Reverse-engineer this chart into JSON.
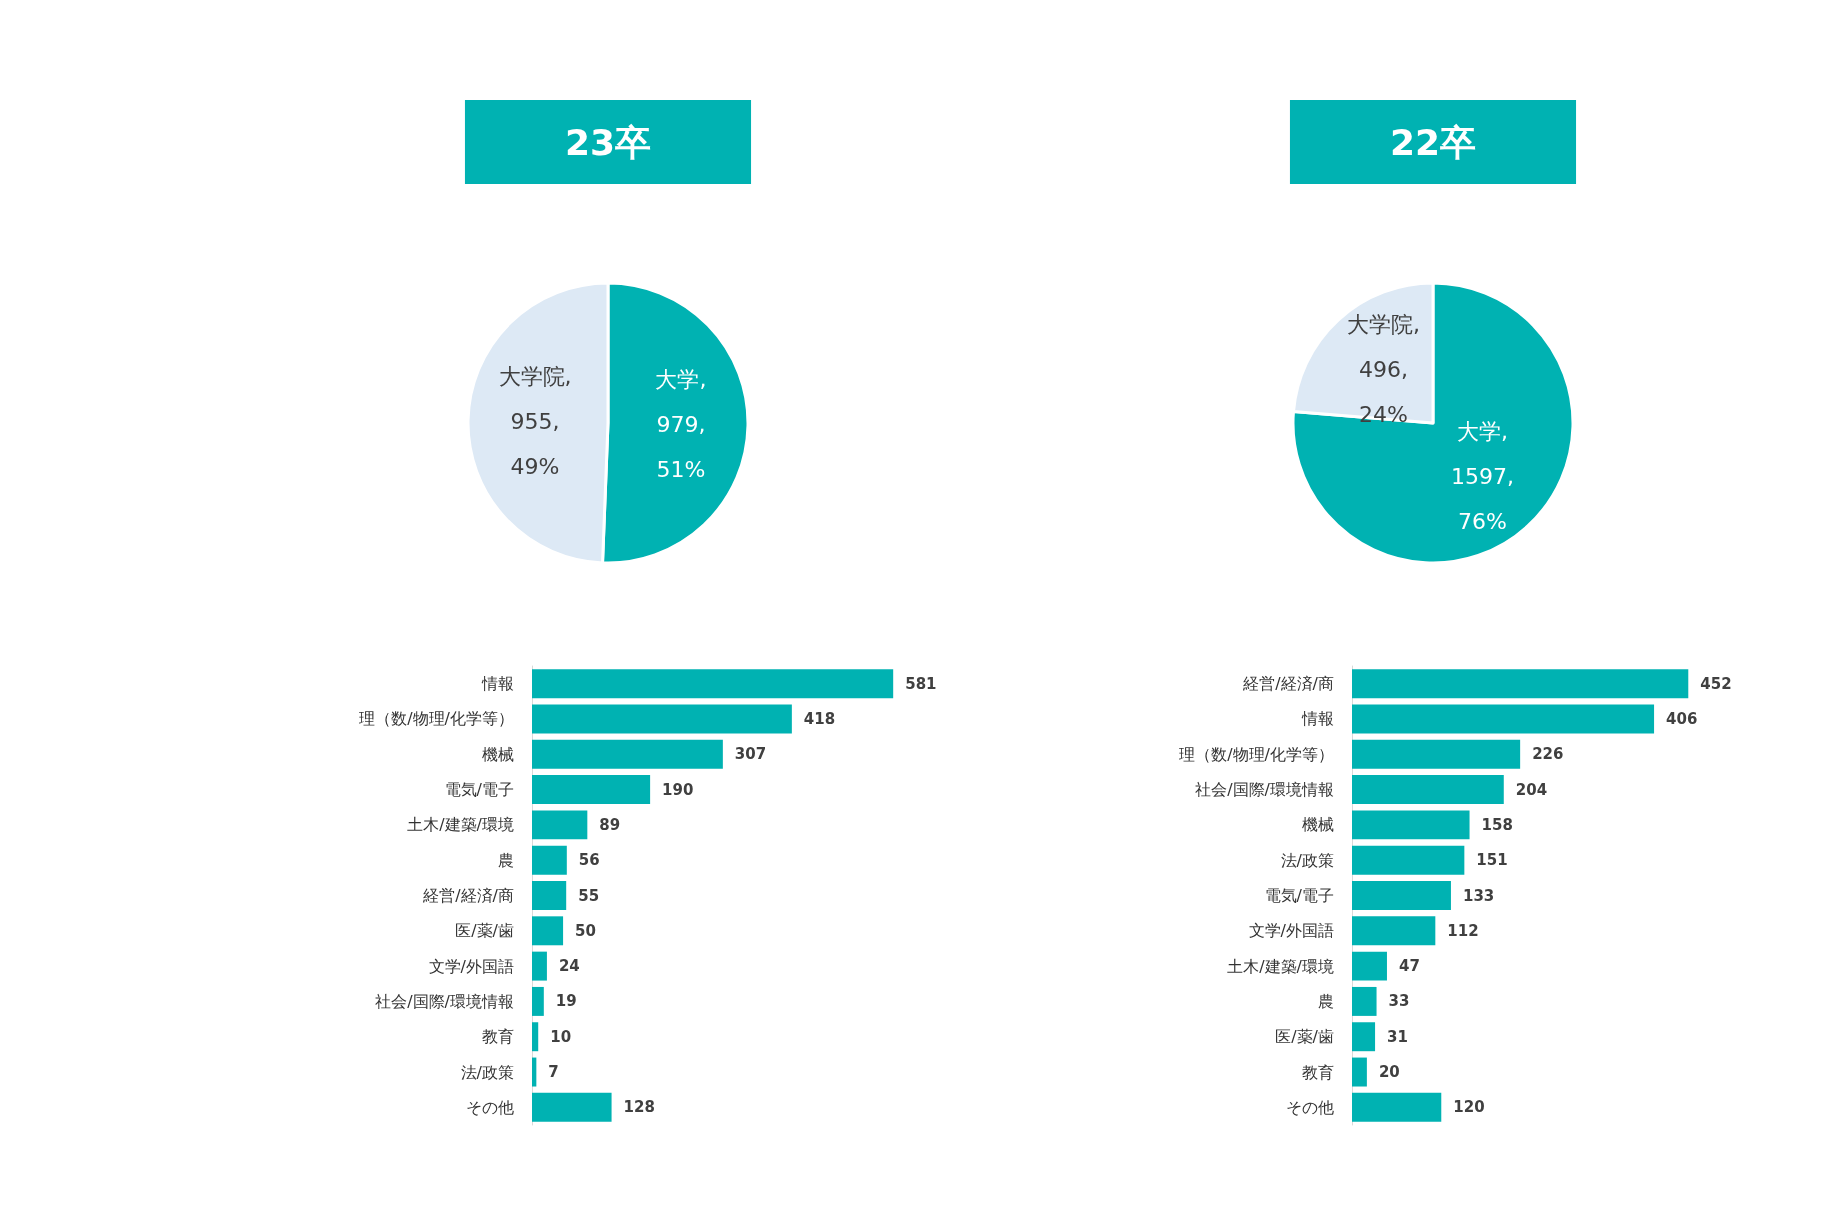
{
  "chart_data": [
    {
      "type": "pie",
      "title": "23卒",
      "categories": [
        "大学",
        "大学院"
      ],
      "values": [
        979,
        955
      ],
      "value_labels": [
        ",\n979,\n51%",
        ",\n955,\n49%"
      ],
      "colors": [
        "#00b2b2",
        "#dde9f5"
      ]
    },
    {
      "type": "pie",
      "title": "22卒",
      "categories": [
        "大学",
        "大学院"
      ],
      "values": [
        1597,
        496
      ],
      "value_labels": [
        ",\n1597,\n76%",
        ",\n496,\n24%"
      ],
      "colors": [
        "#00b2b2",
        "#dde9f5"
      ]
    },
    {
      "type": "bar",
      "orientation": "horizontal",
      "categories": [
        "情報",
        "理（数/物理/化学等）",
        "機械",
        "電気/電子",
        "土木/建築/環境",
        "農",
        "経営/経済/商",
        "医/薬/歯",
        "文学/外国語",
        "社会/国際/環境情報",
        "教育",
        "法/政策",
        "その他"
      ],
      "values": [
        581,
        418,
        307,
        190,
        89,
        56,
        55,
        50,
        24,
        19,
        10,
        7,
        128
      ],
      "color": "#00b2b2",
      "data_labels": true
    },
    {
      "type": "bar",
      "orientation": "horizontal",
      "categories": [
        "経営/経済/商",
        "情報",
        "理（数/物理/化学等）",
        "社会/国際/環境情報",
        "機械",
        "法/政策",
        "電気/電子",
        "文学/外国語",
        "土木/建築/環境",
        "農",
        "医/薬/歯",
        "教育",
        "その他"
      ],
      "values": [
        452,
        406,
        226,
        204,
        158,
        151,
        133,
        112,
        47,
        33,
        31,
        20,
        120
      ],
      "color": "#00b2b2",
      "data_labels": true
    }
  ]
}
